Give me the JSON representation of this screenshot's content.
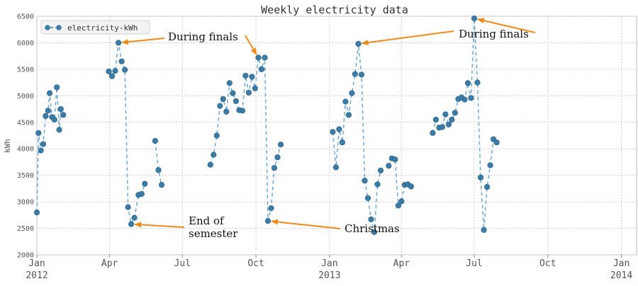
{
  "chart_data": {
    "type": "line",
    "title": "Weekly electricity data",
    "xlabel": "",
    "ylabel": "kWh",
    "ylim": [
      2000,
      6500
    ],
    "yticks": [
      "2000",
      "2500",
      "3000",
      "3500",
      "4000",
      "4500",
      "5000",
      "5500",
      "6000",
      "6500"
    ],
    "xlim": [
      "2012-01-01",
      "2014-01-20"
    ],
    "xticks": [
      {
        "date": "2012-01-01",
        "label": "Jan",
        "sublabel": "2012"
      },
      {
        "date": "2012-04-01",
        "label": "Apr",
        "sublabel": ""
      },
      {
        "date": "2012-07-01",
        "label": "Jul",
        "sublabel": ""
      },
      {
        "date": "2012-10-01",
        "label": "Oct",
        "sublabel": ""
      },
      {
        "date": "2013-01-01",
        "label": "Jan",
        "sublabel": "2013"
      },
      {
        "date": "2013-04-01",
        "label": "Apr",
        "sublabel": ""
      },
      {
        "date": "2013-07-01",
        "label": "Jul",
        "sublabel": ""
      },
      {
        "date": "2013-10-01",
        "label": "Oct",
        "sublabel": ""
      },
      {
        "date": "2014-01-01",
        "label": "Jan",
        "sublabel": "2014"
      }
    ],
    "grid": true,
    "legend_position": "top-left",
    "series": [
      {
        "name": "electricity-kWh",
        "color": "#3a7ca5",
        "line_style": "dashed",
        "points": [
          {
            "x": "2012-01-01",
            "y": 2800
          },
          {
            "x": "2012-01-03",
            "y": 4300
          },
          {
            "x": "2012-01-06",
            "y": 3970
          },
          {
            "x": "2012-01-09",
            "y": 4090
          },
          {
            "x": "2012-01-12",
            "y": 4620
          },
          {
            "x": "2012-01-15",
            "y": 4720
          },
          {
            "x": "2012-01-17",
            "y": 5050
          },
          {
            "x": "2012-01-20",
            "y": 4600
          },
          {
            "x": "2012-01-23",
            "y": 4550
          },
          {
            "x": "2012-01-26",
            "y": 5160
          },
          {
            "x": "2012-01-29",
            "y": 4360
          },
          {
            "x": "2012-01-31",
            "y": 4750
          },
          {
            "x": "2012-02-03",
            "y": 4640
          },
          null,
          {
            "x": "2012-03-31",
            "y": 5460
          },
          {
            "x": "2012-04-04",
            "y": 5370
          },
          {
            "x": "2012-04-08",
            "y": 5470
          },
          {
            "x": "2012-04-12",
            "y": 6000
          },
          {
            "x": "2012-04-16",
            "y": 5650
          },
          {
            "x": "2012-04-20",
            "y": 5490
          },
          {
            "x": "2012-04-24",
            "y": 2900
          },
          {
            "x": "2012-04-28",
            "y": 2580
          },
          {
            "x": "2012-05-02",
            "y": 2700
          },
          {
            "x": "2012-05-07",
            "y": 3130
          },
          {
            "x": "2012-05-11",
            "y": 3150
          },
          {
            "x": "2012-05-15",
            "y": 3340
          },
          null,
          {
            "x": "2012-05-28",
            "y": 4150
          },
          {
            "x": "2012-06-01",
            "y": 3600
          },
          {
            "x": "2012-06-05",
            "y": 3320
          },
          null,
          {
            "x": "2012-08-05",
            "y": 3700
          },
          {
            "x": "2012-08-09",
            "y": 3890
          },
          {
            "x": "2012-08-13",
            "y": 4250
          },
          {
            "x": "2012-08-17",
            "y": 4810
          },
          {
            "x": "2012-08-21",
            "y": 4940
          },
          {
            "x": "2012-08-25",
            "y": 4700
          },
          {
            "x": "2012-08-29",
            "y": 5240
          },
          {
            "x": "2012-09-02",
            "y": 5050
          },
          {
            "x": "2012-09-06",
            "y": 4900
          },
          {
            "x": "2012-09-10",
            "y": 4730
          },
          {
            "x": "2012-09-14",
            "y": 4720
          },
          {
            "x": "2012-09-18",
            "y": 5380
          },
          {
            "x": "2012-09-22",
            "y": 5060
          },
          {
            "x": "2012-09-26",
            "y": 5360
          },
          {
            "x": "2012-09-30",
            "y": 5140
          },
          {
            "x": "2012-10-04",
            "y": 5720
          },
          {
            "x": "2012-10-08",
            "y": 5500
          },
          {
            "x": "2012-10-12",
            "y": 5720
          },
          {
            "x": "2012-10-16",
            "y": 2640
          },
          {
            "x": "2012-10-20",
            "y": 2880
          },
          {
            "x": "2012-10-24",
            "y": 3640
          },
          {
            "x": "2012-10-28",
            "y": 3840
          },
          {
            "x": "2012-11-01",
            "y": 4080
          },
          null,
          {
            "x": "2013-01-05",
            "y": 4320
          },
          {
            "x": "2013-01-09",
            "y": 3650
          },
          {
            "x": "2013-01-13",
            "y": 4370
          },
          {
            "x": "2013-01-17",
            "y": 4120
          },
          {
            "x": "2013-01-21",
            "y": 4890
          },
          {
            "x": "2013-01-25",
            "y": 4640
          },
          {
            "x": "2013-01-29",
            "y": 5050
          },
          {
            "x": "2013-02-02",
            "y": 5410
          },
          {
            "x": "2013-02-06",
            "y": 5980
          },
          {
            "x": "2013-02-10",
            "y": 5400
          },
          {
            "x": "2013-02-14",
            "y": 3400
          },
          {
            "x": "2013-02-18",
            "y": 3070
          },
          {
            "x": "2013-02-22",
            "y": 2670
          },
          {
            "x": "2013-02-26",
            "y": 2430
          },
          {
            "x": "2013-03-02",
            "y": 3330
          },
          {
            "x": "2013-03-06",
            "y": 3590
          },
          null,
          {
            "x": "2013-03-16",
            "y": 3680
          },
          {
            "x": "2013-03-20",
            "y": 3820
          },
          {
            "x": "2013-03-24",
            "y": 3800
          },
          {
            "x": "2013-03-28",
            "y": 2930
          },
          {
            "x": "2013-04-01",
            "y": 3010
          },
          {
            "x": "2013-04-05",
            "y": 3320
          },
          {
            "x": "2013-04-09",
            "y": 3330
          },
          {
            "x": "2013-04-13",
            "y": 3290
          },
          null,
          {
            "x": "2013-05-10",
            "y": 4300
          },
          {
            "x": "2013-05-14",
            "y": 4550
          },
          {
            "x": "2013-05-18",
            "y": 4400
          },
          {
            "x": "2013-05-22",
            "y": 4410
          },
          {
            "x": "2013-05-26",
            "y": 4650
          },
          {
            "x": "2013-05-30",
            "y": 4460
          },
          {
            "x": "2013-06-03",
            "y": 4550
          },
          {
            "x": "2013-06-07",
            "y": 4680
          },
          {
            "x": "2013-06-11",
            "y": 4940
          },
          {
            "x": "2013-06-15",
            "y": 4970
          },
          {
            "x": "2013-06-19",
            "y": 4930
          },
          {
            "x": "2013-06-23",
            "y": 5240
          },
          {
            "x": "2013-06-27",
            "y": 4960
          },
          {
            "x": "2013-07-01",
            "y": 6460
          },
          {
            "x": "2013-07-05",
            "y": 5250
          },
          {
            "x": "2013-07-09",
            "y": 3460
          },
          {
            "x": "2013-07-13",
            "y": 2470
          },
          {
            "x": "2013-07-17",
            "y": 3280
          },
          {
            "x": "2013-07-21",
            "y": 3690
          },
          {
            "x": "2013-07-25",
            "y": 4180
          },
          {
            "x": "2013-07-29",
            "y": 4120
          }
        ]
      }
    ],
    "annotations": [
      {
        "id": "finals-1",
        "lines": [
          "During finals"
        ],
        "arrow_to": {
          "x": "2012-04-12",
          "y": 6000
        }
      },
      {
        "id": "finals-2",
        "lines": [
          "During finals"
        ],
        "arrow_to": {
          "x": "2012-10-04",
          "y": 5720
        }
      },
      {
        "id": "semester",
        "lines": [
          "End of",
          "semester"
        ],
        "arrow_to": {
          "x": "2012-04-28",
          "y": 2580
        }
      },
      {
        "id": "christmas",
        "lines": [
          "Christmas"
        ],
        "arrow_to": {
          "x": "2012-10-16",
          "y": 2640
        }
      },
      {
        "id": "finals-3",
        "lines": [
          "During finals"
        ],
        "arrow_to": {
          "x": "2013-02-06",
          "y": 5980
        }
      },
      {
        "id": "finals-4",
        "lines": [
          "During finals"
        ],
        "arrow_to": {
          "x": "2013-07-01",
          "y": 6460
        }
      }
    ]
  }
}
